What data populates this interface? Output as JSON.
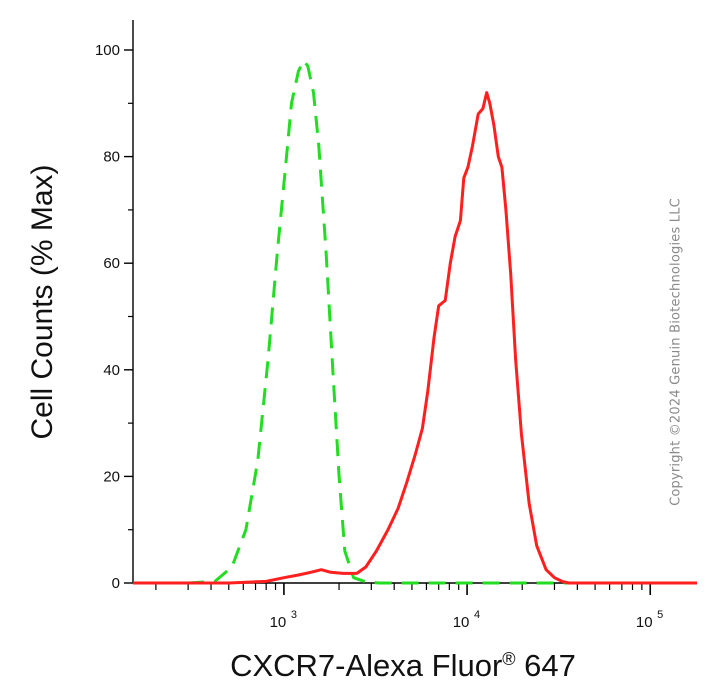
{
  "chart_data": {
    "type": "line",
    "ylabel": "Cell Counts (% Max)",
    "xlabel": "CXCR7-Alexa Fluor® 647",
    "x_scale": "log",
    "xlim": [
      150,
      180000
    ],
    "ylim": [
      0,
      100
    ],
    "y_ticks": [
      0,
      20,
      40,
      60,
      80,
      100
    ],
    "x_ticks": [
      {
        "value": 1000,
        "base": "10",
        "exp": "3"
      },
      {
        "value": 10000,
        "base": "10",
        "exp": "4"
      },
      {
        "value": 100000,
        "base": "10",
        "exp": "5"
      }
    ],
    "grid": false,
    "legend": "none",
    "series": [
      {
        "color": "#22dd22",
        "style": "dashed",
        "x": [
          150,
          300,
          420,
          520,
          620,
          720,
          820,
          920,
          1020,
          1100,
          1200,
          1280,
          1350,
          1450,
          1550,
          1700,
          1850,
          2000,
          2150,
          2400,
          2800,
          3300,
          10000,
          50000,
          180000
        ],
        "y": [
          0,
          0,
          0.3,
          3,
          10,
          23,
          42,
          62,
          78,
          90,
          96,
          98,
          97,
          92,
          82,
          62,
          40,
          20,
          6,
          1,
          0.2,
          0,
          0,
          0,
          0
        ]
      },
      {
        "color": "#ff1f1f",
        "style": "solid",
        "x": [
          150,
          500,
          800,
          1000,
          1200,
          1400,
          1600,
          1800,
          2100,
          2500,
          2800,
          3200,
          3700,
          4200,
          4700,
          5200,
          5700,
          6100,
          6600,
          7000,
          7600,
          8100,
          8600,
          9200,
          9600,
          10100,
          10700,
          11500,
          12200,
          12800,
          13300,
          14000,
          14800,
          15500,
          16300,
          17300,
          18400,
          19800,
          21800,
          24000,
          27000,
          30000,
          33000,
          36000,
          40000,
          45000,
          55000,
          70000,
          180000
        ],
        "y": [
          0,
          0,
          0.3,
          1,
          1.5,
          2,
          2.5,
          2,
          1.8,
          1.8,
          3,
          6,
          10,
          14,
          19,
          24,
          29,
          36,
          46,
          52,
          53,
          60,
          65,
          68,
          76,
          78,
          82,
          88,
          89,
          92,
          90,
          86,
          80,
          78,
          70,
          58,
          42,
          28,
          15,
          7,
          2.5,
          1,
          0.3,
          0,
          0,
          0,
          0,
          0,
          0
        ]
      }
    ]
  },
  "watermark": "Copyright ©2024 Genuin Biotechnologies LLC"
}
